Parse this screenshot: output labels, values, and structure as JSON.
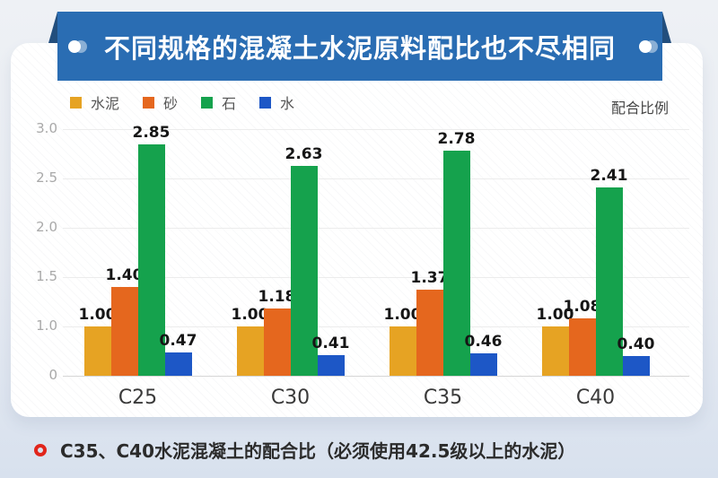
{
  "header": {
    "title": "不同规格的混凝土水泥原料配比也不尽相同",
    "banner_color": "#2A6DB3",
    "fold_color": "#224E7D"
  },
  "legend": {
    "items": [
      {
        "label": "水泥",
        "color": "#E6A323"
      },
      {
        "label": "砂",
        "color": "#E5671E"
      },
      {
        "label": "石",
        "color": "#15A24D"
      },
      {
        "label": "水",
        "color": "#1D57C6"
      }
    ],
    "right_label": "配合比例"
  },
  "chart_data": {
    "type": "bar",
    "title": "",
    "xlabel": "",
    "ylabel": "",
    "categories": [
      "C25",
      "C30",
      "C35",
      "C40"
    ],
    "series": [
      {
        "name": "水泥",
        "color": "#E6A323",
        "values": [
          1.0,
          1.0,
          1.0,
          1.0
        ]
      },
      {
        "name": "砂",
        "color": "#E5671E",
        "values": [
          1.4,
          1.18,
          1.37,
          1.08
        ]
      },
      {
        "name": "石",
        "color": "#15A24D",
        "values": [
          2.85,
          2.63,
          2.78,
          2.41
        ]
      },
      {
        "name": "水",
        "color": "#1D57C6",
        "values": [
          0.47,
          0.41,
          0.46,
          0.4
        ]
      }
    ],
    "yticks": [
      0,
      1.0,
      1.5,
      2.0,
      2.5,
      3.0
    ],
    "ytick_labels": [
      "0",
      "1.0",
      "1.5",
      "2.0",
      "2.5",
      "3.0"
    ],
    "axis_note": "ticks evenly spaced (0 to 1.0 compressed to one step)",
    "grid": true,
    "value_labels": true,
    "value_label_format": "0.00",
    "legend_position": "top-left"
  },
  "footer": {
    "highlight": "C35、C40",
    "text": "水泥混凝土的配合比（必须使用42.5级以上的水泥）"
  }
}
